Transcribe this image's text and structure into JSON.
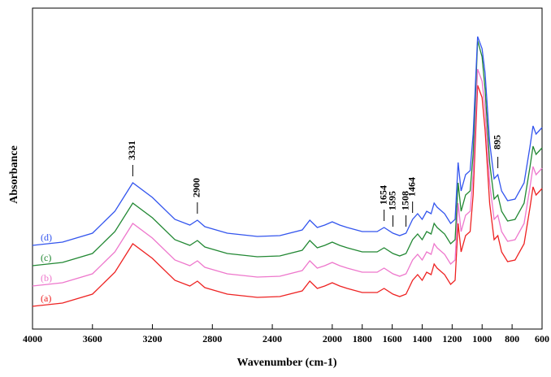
{
  "chart_data": {
    "type": "line",
    "x_label": "Wavenumber (cm-1)",
    "y_label": "Absorbance",
    "x": [
      4000,
      3800,
      3600,
      3450,
      3331,
      3200,
      3050,
      2950,
      2900,
      2850,
      2700,
      2500,
      2350,
      2200,
      2150,
      2100,
      2050,
      2000,
      1950,
      1900,
      1800,
      1700,
      1654,
      1595,
      1550,
      1508,
      1464,
      1430,
      1400,
      1370,
      1340,
      1320,
      1300,
      1250,
      1210,
      1180,
      1160,
      1140,
      1110,
      1080,
      1060,
      1030,
      1000,
      980,
      950,
      920,
      895,
      870,
      830,
      780,
      720,
      680,
      660,
      640,
      600
    ],
    "series": [
      {
        "name": "(a)",
        "color": "#ee2222",
        "values": [
          28,
          32,
          43,
          70,
          105,
          87,
          60,
          53,
          59,
          51,
          43,
          39,
          40,
          47,
          59,
          50,
          53,
          57,
          53,
          50,
          45,
          45,
          50,
          43,
          40,
          43,
          60,
          67,
          60,
          70,
          67,
          80,
          75,
          67,
          55,
          60,
          130,
          95,
          115,
          120,
          165,
          300,
          285,
          245,
          155,
          110,
          115,
          95,
          83,
          85,
          105,
          150,
          175,
          165,
          173
        ]
      },
      {
        "name": "(b)",
        "color": "#ee77cc",
        "values": [
          53,
          57,
          68,
          95,
          130,
          112,
          85,
          78,
          84,
          76,
          68,
          64,
          65,
          72,
          84,
          75,
          78,
          82,
          78,
          75,
          70,
          70,
          75,
          68,
          65,
          68,
          85,
          92,
          85,
          95,
          92,
          105,
          100,
          92,
          80,
          85,
          155,
          120,
          140,
          145,
          190,
          320,
          305,
          270,
          180,
          135,
          140,
          120,
          108,
          110,
          130,
          175,
          200,
          190,
          198
        ]
      },
      {
        "name": "(c)",
        "color": "#228833",
        "values": [
          78,
          82,
          93,
          120,
          155,
          137,
          110,
          103,
          109,
          101,
          93,
          89,
          90,
          97,
          109,
          100,
          103,
          107,
          103,
          100,
          95,
          95,
          100,
          93,
          90,
          93,
          110,
          117,
          110,
          120,
          117,
          130,
          125,
          117,
          105,
          110,
          180,
          145,
          165,
          170,
          215,
          355,
          335,
          295,
          205,
          160,
          165,
          145,
          133,
          135,
          155,
          200,
          225,
          215,
          223
        ]
      },
      {
        "name": "(d)",
        "color": "#3355ee",
        "values": [
          103,
          107,
          118,
          145,
          180,
          162,
          135,
          128,
          134,
          126,
          118,
          114,
          115,
          122,
          134,
          125,
          128,
          132,
          128,
          125,
          120,
          120,
          125,
          118,
          115,
          118,
          135,
          142,
          135,
          145,
          142,
          155,
          150,
          142,
          130,
          135,
          205,
          170,
          190,
          195,
          240,
          360,
          345,
          315,
          230,
          185,
          190,
          170,
          158,
          160,
          180,
          225,
          250,
          240,
          248
        ]
      }
    ],
    "xlim": [
      4000,
      600
    ],
    "ylim": [
      0,
      395
    ],
    "xticks": [
      4000,
      3600,
      3200,
      2800,
      2400,
      2000,
      1800,
      1600,
      1400,
      1200,
      1000,
      800,
      600
    ],
    "annotations": [
      {
        "x": 3331
      },
      {
        "x": 2900
      },
      {
        "x": 1654
      },
      {
        "x": 1595
      },
      {
        "x": 1508
      },
      {
        "x": 1464
      },
      {
        "x": 895
      }
    ]
  }
}
